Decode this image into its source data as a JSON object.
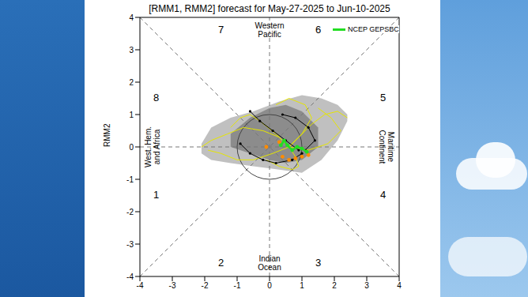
{
  "chart_data": {
    "type": "line",
    "title": "[RMM1, RMM2] forecast for May-27-2025 to Jun-10-2025",
    "y_label": "RMM2",
    "xlim": [
      -4,
      4
    ],
    "xticks": [
      -4,
      -3,
      -2,
      -1,
      0,
      1,
      2,
      3,
      4
    ],
    "ylim": [
      -4,
      4
    ],
    "yticks": [
      -4,
      -3,
      -2,
      -1,
      0,
      1,
      2,
      3,
      4
    ],
    "legend": "upper right",
    "phases": [
      1,
      2,
      3,
      4,
      5,
      6,
      7,
      8
    ],
    "regions": [
      [
        "Western",
        "Pacific"
      ],
      [
        "Maritime",
        "Continent"
      ],
      [
        "Indian",
        "Ocean"
      ],
      [
        "West. Hem.",
        "and Africa"
      ]
    ],
    "spread": [
      {
        "color": "#c0c0c0",
        "x": [
          -2.1,
          -1.8,
          -1.2,
          -0.5,
          0.3,
          1.0,
          1.6,
          2.1,
          2.4
        ],
        "low": [
          -0.2,
          -0.4,
          -0.5,
          -0.6,
          -0.7,
          -0.8,
          -0.4,
          0.2,
          0.8
        ],
        "high": [
          0.1,
          0.6,
          0.9,
          1.1,
          1.4,
          1.6,
          1.5,
          1.3,
          1.0
        ]
      },
      {
        "color": "#8c8c8c",
        "x": [
          -1.2,
          -0.6,
          0.0,
          0.5,
          1.0,
          1.5
        ],
        "low": [
          0.0,
          -0.2,
          -0.4,
          -0.5,
          -0.4,
          0.0
        ],
        "high": [
          0.4,
          0.9,
          1.2,
          1.3,
          1.1,
          0.6
        ]
      }
    ],
    "members": [
      {
        "color": "#e6e600",
        "marker": "none",
        "line_style": "solid",
        "x": [
          0.6,
          0.3,
          -0.2,
          -0.8,
          -1.3,
          -1.8,
          -2.1
        ],
        "values": [
          0,
          0.3,
          0.5,
          0.6,
          0.4,
          0.2,
          0.0
        ]
      },
      {
        "color": "#e6e600",
        "marker": "none",
        "line_style": "solid",
        "x": [
          0.6,
          0.9,
          1.3,
          1.7,
          2.1,
          2.4
        ],
        "values": [
          0,
          0.3,
          0.7,
          1.0,
          1.1,
          0.9
        ]
      },
      {
        "color": "#e6e600",
        "marker": "none",
        "line_style": "solid",
        "x": [
          0.6,
          0.2,
          -0.3,
          -0.6,
          -0.9,
          -1.2
        ],
        "values": [
          0,
          0.4,
          0.8,
          1.0,
          0.9,
          0.6
        ]
      },
      {
        "color": "#e6e600",
        "marker": "none",
        "line_style": "solid",
        "x": [
          0.6,
          0.8,
          0.9,
          0.7,
          0.3,
          -0.1
        ],
        "values": [
          0,
          -0.3,
          -0.6,
          -0.7,
          -0.6,
          -0.4
        ]
      },
      {
        "color": "#e6e600",
        "marker": "none",
        "line_style": "solid",
        "x": [
          0.6,
          1.0,
          1.3,
          1.1,
          0.6,
          0.2
        ],
        "values": [
          0,
          0.4,
          0.9,
          1.3,
          1.5,
          1.3
        ]
      },
      {
        "color": "#e6e600",
        "marker": "none",
        "line_style": "solid",
        "x": [
          0.6,
          0.1,
          -0.5,
          -1.0,
          -1.5,
          -1.9
        ],
        "values": [
          0,
          -0.2,
          -0.4,
          -0.4,
          -0.2,
          -0.1
        ]
      },
      {
        "color": "#e6e600",
        "marker": "none",
        "line_style": "solid",
        "x": [
          0.6,
          1.2,
          1.8,
          2.2,
          1.9,
          1.5
        ],
        "values": [
          0,
          -0.1,
          0.1,
          0.5,
          0.9,
          1.2
        ]
      },
      {
        "color": "#000000",
        "marker": "circle",
        "line_style": "solid",
        "x": [
          0.9,
          0.5,
          0.1,
          -0.3,
          -0.6
        ],
        "values": [
          -0.1,
          0.2,
          0.5,
          0.8,
          1.1
        ]
      },
      {
        "color": "#000000",
        "marker": "circle",
        "line_style": "solid",
        "x": [
          1.0,
          0.7,
          0.2,
          -0.2,
          -0.6,
          -0.9
        ],
        "values": [
          -0.2,
          -0.4,
          -0.5,
          -0.4,
          -0.2,
          0.1
        ]
      },
      {
        "color": "#000000",
        "marker": "circle",
        "line_style": "solid",
        "x": [
          1.1,
          1.4,
          1.2,
          0.8,
          0.4
        ],
        "values": [
          -0.1,
          0.2,
          0.6,
          0.9,
          1.0
        ]
      },
      {
        "color": "#ff8c00",
        "marker": "circle",
        "line_style": "none",
        "x": [
          0.4,
          0.6,
          0.8,
          1.0,
          1.2,
          0.3,
          -0.1
        ],
        "values": [
          -0.3,
          -0.4,
          -0.35,
          -0.3,
          -0.25,
          0.15,
          0.0
        ]
      }
    ],
    "series": [
      {
        "name": "NCEP GEPSBC",
        "color": "#22dd22",
        "marker": "circle",
        "line_style": "solid",
        "x": [
          1.15,
          1.0,
          0.85,
          0.7,
          0.55,
          0.45,
          0.35
        ],
        "values": [
          -0.15,
          -0.05,
          0.0,
          -0.1,
          0.05,
          0.2,
          0.05
        ]
      }
    ]
  }
}
